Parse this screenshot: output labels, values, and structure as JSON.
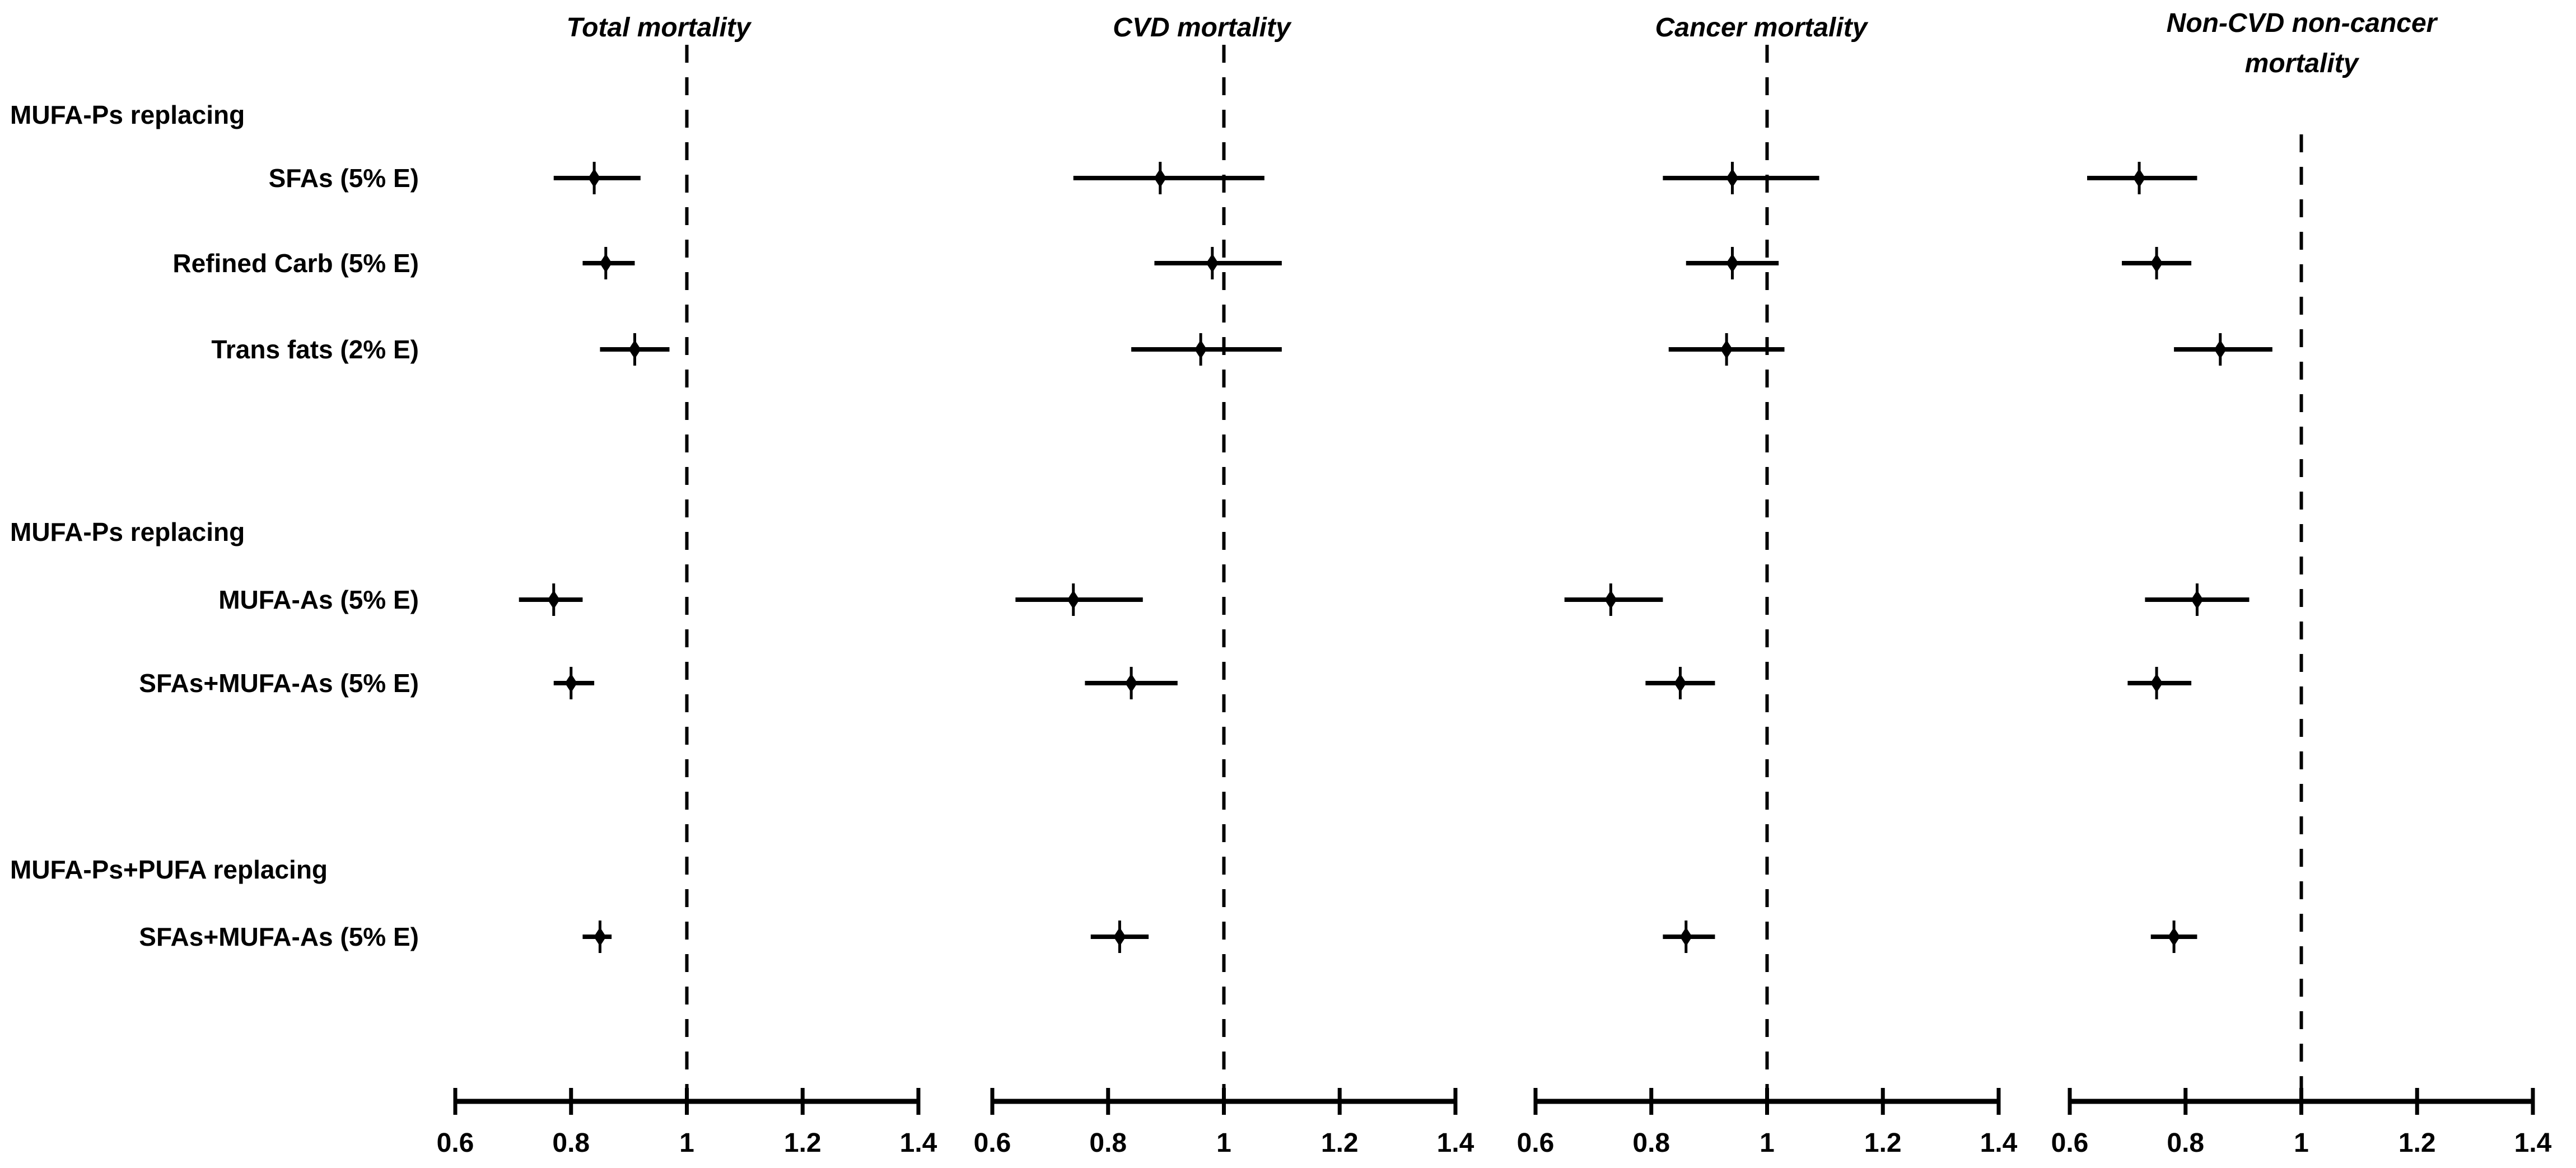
{
  "colors": {
    "foreground": "#000000",
    "background": "#ffffff"
  },
  "chart_data": {
    "type": "forest",
    "title": "",
    "xlim": [
      0.6,
      1.4
    ],
    "reference_line": 1,
    "axis_tick_values": [
      0.6,
      0.8,
      1,
      1.2,
      1.4
    ],
    "axis_tick_labels": [
      "0.6",
      "0.8",
      "1",
      "1.2",
      "1.4"
    ],
    "grid": false,
    "rows": [
      {
        "type": "header",
        "label": "MUFA-Ps replacing"
      },
      {
        "type": "item",
        "label": "SFAs (5% E)"
      },
      {
        "type": "item",
        "label": "Refined Carb (5% E)"
      },
      {
        "type": "item",
        "label": "Trans fats (2% E)"
      },
      {
        "type": "header",
        "label": "MUFA-Ps replacing"
      },
      {
        "type": "item",
        "label": "MUFA-As (5% E)"
      },
      {
        "type": "item",
        "label": "SFAs+MUFA-As (5% E)"
      },
      {
        "type": "header",
        "label": "MUFA-Ps+PUFA replacing"
      },
      {
        "type": "item",
        "label": "SFAs+MUFA-As (5% E)"
      }
    ],
    "panels": [
      {
        "title": "Total mortality",
        "estimates": [
          {
            "hr": 0.84,
            "lo": 0.77,
            "hi": 0.92
          },
          {
            "hr": 0.86,
            "lo": 0.82,
            "hi": 0.91
          },
          {
            "hr": 0.91,
            "lo": 0.85,
            "hi": 0.97
          },
          {
            "hr": 0.77,
            "lo": 0.71,
            "hi": 0.82
          },
          {
            "hr": 0.8,
            "lo": 0.77,
            "hi": 0.84
          },
          {
            "hr": 0.85,
            "lo": 0.82,
            "hi": 0.87
          }
        ]
      },
      {
        "title": "CVD mortality",
        "estimates": [
          {
            "hr": 0.89,
            "lo": 0.74,
            "hi": 1.07
          },
          {
            "hr": 0.98,
            "lo": 0.88,
            "hi": 1.1
          },
          {
            "hr": 0.96,
            "lo": 0.84,
            "hi": 1.1
          },
          {
            "hr": 0.74,
            "lo": 0.64,
            "hi": 0.86
          },
          {
            "hr": 0.84,
            "lo": 0.76,
            "hi": 0.92
          },
          {
            "hr": 0.82,
            "lo": 0.77,
            "hi": 0.87
          }
        ]
      },
      {
        "title": "Cancer mortality",
        "estimates": [
          {
            "hr": 0.94,
            "lo": 0.82,
            "hi": 1.09
          },
          {
            "hr": 0.94,
            "lo": 0.86,
            "hi": 1.02
          },
          {
            "hr": 0.93,
            "lo": 0.83,
            "hi": 1.03
          },
          {
            "hr": 0.73,
            "lo": 0.65,
            "hi": 0.82
          },
          {
            "hr": 0.85,
            "lo": 0.79,
            "hi": 0.91
          },
          {
            "hr": 0.86,
            "lo": 0.82,
            "hi": 0.91
          }
        ]
      },
      {
        "title": "Non-CVD non-cancer\nmortality",
        "estimates": [
          {
            "hr": 0.72,
            "lo": 0.63,
            "hi": 0.82
          },
          {
            "hr": 0.75,
            "lo": 0.69,
            "hi": 0.81
          },
          {
            "hr": 0.86,
            "lo": 0.78,
            "hi": 0.95
          },
          {
            "hr": 0.82,
            "lo": 0.73,
            "hi": 0.91
          },
          {
            "hr": 0.75,
            "lo": 0.7,
            "hi": 0.81
          },
          {
            "hr": 0.78,
            "lo": 0.74,
            "hi": 0.82
          }
        ]
      }
    ]
  }
}
